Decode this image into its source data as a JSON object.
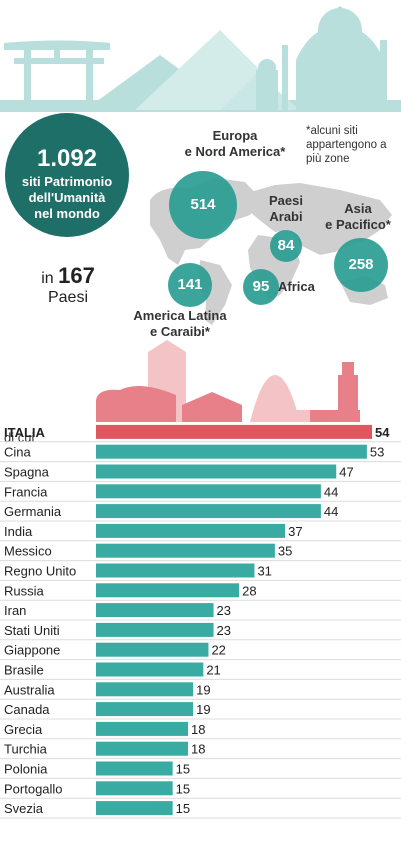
{
  "colors": {
    "teal": "#2a9d94",
    "teal_dark": "#1f6f69",
    "bar": "#3aaba3",
    "italy_bar": "#e2555e",
    "skyline_top": "#b9dfdc",
    "map_grey": "#cfcfcf",
    "skyline_red": "#e8808a",
    "skyline_pink": "#f4c3c5"
  },
  "summary": {
    "total": "1.092",
    "total_label_line1": "siti Patrimonio",
    "total_label_line2": "dell'Umanità",
    "total_label_line3": "nel mondo",
    "in_label": "in",
    "countries": "167",
    "countries_label": "Paesi"
  },
  "note": "*alcuni siti appartengono a più zone",
  "regions": {
    "europe": {
      "label1": "Europa",
      "label2": "e Nord America*",
      "value": "514"
    },
    "arab": {
      "label1": "Paesi",
      "label2": "Arabi",
      "value": "84"
    },
    "asia": {
      "label1": "Asia",
      "label2": "e Pacifico*",
      "value": "258"
    },
    "africa": {
      "label": "Africa",
      "value": "95"
    },
    "latam": {
      "label1": "America Latina",
      "label2": "e Caraibi*",
      "value": "141"
    }
  },
  "di_cui": "di cui",
  "chart_data": {
    "type": "bar",
    "orientation": "horizontal",
    "categories": [
      "ITALIA",
      "Cina",
      "Spagna",
      "Francia",
      "Germania",
      "India",
      "Messico",
      "Regno Unito",
      "Russia",
      "Iran",
      "Stati Uniti",
      "Giappone",
      "Brasile",
      "Australia",
      "Canada",
      "Grecia",
      "Turchia",
      "Polonia",
      "Portogallo",
      "Svezia"
    ],
    "values": [
      54,
      53,
      47,
      44,
      44,
      37,
      35,
      31,
      28,
      23,
      23,
      22,
      21,
      19,
      19,
      18,
      18,
      15,
      15,
      15
    ],
    "highlight": "ITALIA"
  }
}
